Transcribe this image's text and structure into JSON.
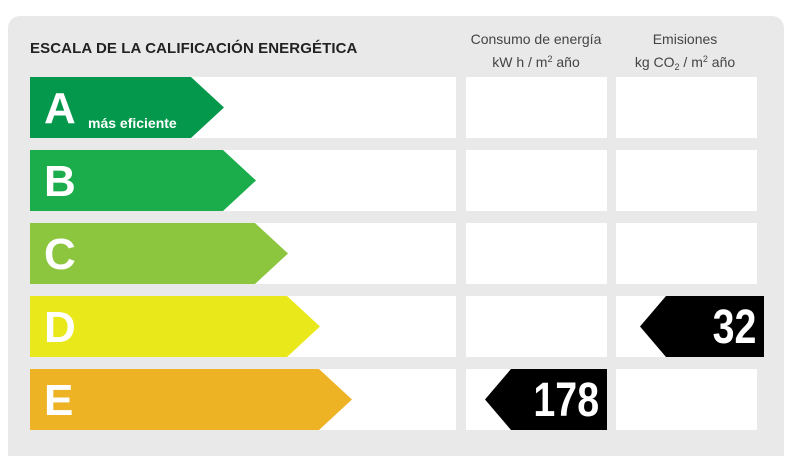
{
  "header": {
    "title": "ESCALA DE LA CALIFICACIÓN ENERGÉTICA",
    "consumo": {
      "line1": "Consumo de energía",
      "unit_a": "kW h  / m",
      "unit_sup": "2",
      "unit_b": " año"
    },
    "emisiones": {
      "line1": "Emisiones",
      "unit_a": "kg CO",
      "unit_sub": "2",
      "unit_b": "  / m",
      "unit_sup": "2",
      "unit_c": " año"
    }
  },
  "ratings": [
    {
      "letter": "A",
      "sublabel": "más eficiente",
      "color": "#03984b"
    },
    {
      "letter": "B",
      "sublabel": "",
      "color": "#1bad4b"
    },
    {
      "letter": "C",
      "sublabel": "",
      "color": "#8cc63f"
    },
    {
      "letter": "D",
      "sublabel": "",
      "color": "#e9e81a"
    },
    {
      "letter": "E",
      "sublabel": "",
      "color": "#edb325"
    }
  ],
  "markers": {
    "consumo": {
      "value": "178",
      "rating": "E"
    },
    "emisiones": {
      "value": "32",
      "rating": "D"
    }
  }
}
